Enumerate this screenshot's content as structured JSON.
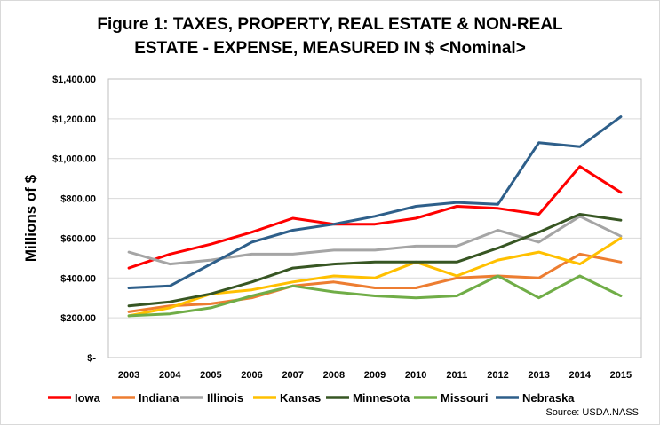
{
  "chart_data": {
    "type": "line",
    "title_lines": [
      "Figure 1: TAXES, PROPERTY, REAL ESTATE & NON-REAL",
      "ESTATE - EXPENSE, MEASURED IN $ <Nominal>"
    ],
    "ylabel": "Millions of $",
    "xlabel": "",
    "source": "Source: USDA.NASS",
    "x": [
      "2003",
      "2004",
      "2005",
      "2006",
      "2007",
      "2008",
      "2009",
      "2010",
      "2011",
      "2012",
      "2013",
      "2014",
      "2015"
    ],
    "ylim": [
      0,
      1400
    ],
    "yticks": [
      0,
      200,
      400,
      600,
      800,
      1000,
      1200,
      1400
    ],
    "ytick_labels": [
      "$-",
      "$200.00",
      "$400.00",
      "$600.00",
      "$800.00",
      "$1,000.00",
      "$1,200.00",
      "$1,400.00"
    ],
    "grid": true,
    "legend_position": "bottom",
    "series": [
      {
        "name": "Iowa",
        "color": "#ff0000",
        "values": [
          450,
          520,
          570,
          630,
          700,
          670,
          670,
          700,
          760,
          750,
          720,
          960,
          830
        ]
      },
      {
        "name": "Indiana",
        "color": "#ed7d31",
        "values": [
          230,
          260,
          270,
          300,
          360,
          380,
          350,
          350,
          400,
          410,
          400,
          520,
          480
        ]
      },
      {
        "name": "Illinois",
        "color": "#a5a5a5",
        "values": [
          530,
          470,
          490,
          520,
          520,
          540,
          540,
          560,
          560,
          640,
          580,
          710,
          610
        ]
      },
      {
        "name": "Kansas",
        "color": "#ffc000",
        "values": [
          210,
          250,
          320,
          340,
          380,
          410,
          400,
          480,
          410,
          490,
          530,
          470,
          600
        ]
      },
      {
        "name": "Minnesota",
        "color": "#375623",
        "values": [
          260,
          280,
          320,
          380,
          450,
          470,
          480,
          480,
          480,
          550,
          630,
          720,
          690
        ]
      },
      {
        "name": "Missouri",
        "color": "#70ad47",
        "values": [
          210,
          220,
          250,
          310,
          360,
          330,
          310,
          300,
          310,
          410,
          300,
          410,
          310
        ]
      },
      {
        "name": "Nebraska",
        "color": "#2e5f8a",
        "values": [
          350,
          360,
          470,
          580,
          640,
          670,
          710,
          760,
          780,
          770,
          1080,
          1060,
          1210
        ]
      }
    ]
  }
}
